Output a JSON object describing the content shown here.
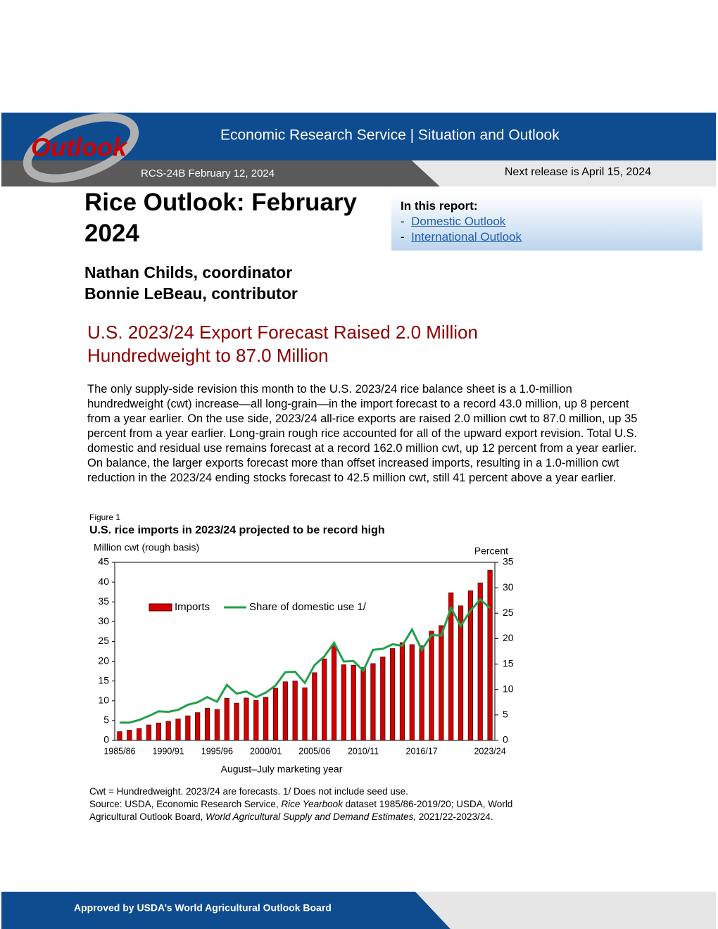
{
  "header": {
    "logo": "Outlook",
    "service": "Economic Research Service | Situation and Outlook",
    "report": "RCS-24B  February 12, 2024",
    "next_release": "Next release is April 15, 2024"
  },
  "title": "Rice Outlook: February 2024",
  "authors": [
    "Nathan Childs, coordinator",
    "Bonnie LeBeau, contributor"
  ],
  "in_this_report": {
    "heading": "In this report:",
    "items": [
      {
        "bullet": "-",
        "text": "Domestic Outlook"
      },
      {
        "bullet": "-",
        "text": "International Outlook"
      }
    ]
  },
  "headline": "U.S. 2023/24 Export Forecast Raised 2.0 Million Hundredweight to 87.0 Million",
  "body": "The only supply-side revision this month to the U.S. 2023/24 rice balance sheet is a 1.0-million hundredweight (cwt) increase—all long-grain—in the import forecast to a record 43.0 million, up 8 percent from a year earlier. On the use side, 2023/24 all-rice exports are raised 2.0 million cwt to 87.0 million, up 35 percent from a year earlier. Long-grain rough rice accounted for all of the upward export revision. Total U.S. domestic and residual use remains forecast at a record 162.0 million cwt, up 12 percent from a year earlier. On balance, the larger exports forecast more than offset increased imports, resulting in a 1.0-million cwt reduction in the 2023/24 ending stocks forecast to 42.5 million cwt, still 41 percent above a year earlier.",
  "figure_label": "Figure 1",
  "chart_data": {
    "type": "bar",
    "title": "U.S. rice imports in 2023/24 projected to be record high",
    "y_label": "Million cwt (rough basis)",
    "y2_label": "Percent",
    "x_label": "August–July marketing year",
    "categories": [
      "1985/86",
      null,
      null,
      null,
      null,
      "1990/91",
      null,
      null,
      null,
      null,
      "1995/96",
      null,
      null,
      null,
      null,
      "2000/01",
      null,
      null,
      null,
      null,
      "2005/06",
      null,
      null,
      null,
      null,
      "2010/11",
      null,
      null,
      null,
      null,
      null,
      "2016/17",
      null,
      null,
      null,
      null,
      null,
      null,
      "2023/24"
    ],
    "series": [
      {
        "name": "Imports",
        "type": "bar",
        "color": "#d40000",
        "values": [
          2.2,
          2.6,
          3.0,
          3.9,
          4.4,
          4.8,
          5.4,
          6.2,
          7.0,
          8.1,
          7.8,
          10.6,
          9.4,
          10.7,
          10.1,
          10.9,
          13.2,
          14.8,
          15.0,
          13.3,
          17.1,
          20.6,
          23.9,
          19.1,
          19.0,
          18.4,
          19.4,
          21.1,
          23.2,
          24.7,
          24.2,
          23.9,
          27.6,
          29.0,
          37.3,
          34.0,
          37.8,
          39.8,
          43.0
        ]
      },
      {
        "name": "Share of domestic use 1/",
        "type": "line",
        "axis": "y2",
        "color": "#22a04a",
        "values": [
          3.5,
          3.5,
          4.0,
          4.8,
          5.7,
          5.6,
          6.0,
          7.0,
          7.5,
          8.5,
          7.6,
          10.9,
          9.2,
          9.6,
          8.5,
          9.4,
          10.8,
          13.4,
          13.5,
          11.3,
          14.8,
          16.5,
          19.2,
          15.5,
          15.6,
          13.7,
          17.8,
          18.0,
          18.9,
          18.6,
          21.8,
          17.8,
          20.7,
          20.6,
          26.0,
          22.5,
          25.5,
          27.7,
          26.0
        ]
      }
    ],
    "ylim": [
      0,
      45
    ],
    "yticks": [
      0,
      5,
      10,
      15,
      20,
      25,
      30,
      35,
      40,
      45
    ],
    "y2lim": [
      0,
      35
    ],
    "y2ticks": [
      0,
      5,
      10,
      15,
      20,
      25,
      30,
      35
    ],
    "grid": false
  },
  "notes": {
    "line1": "Cwt = Hundredweight. 2023/24 are forecasts. 1/ Does not include seed use.",
    "source": [
      "Source: USDA, Economic Research Service, ",
      "Rice Yearbook",
      " dataset 1985/86-2019/20; USDA, World Agricultural Outlook Board, ",
      "World Agricultural Supply and Demand Estimates,",
      " 2021/22-2023/24."
    ]
  },
  "footer": "Approved by USDA’s World Agricultural Outlook Board"
}
